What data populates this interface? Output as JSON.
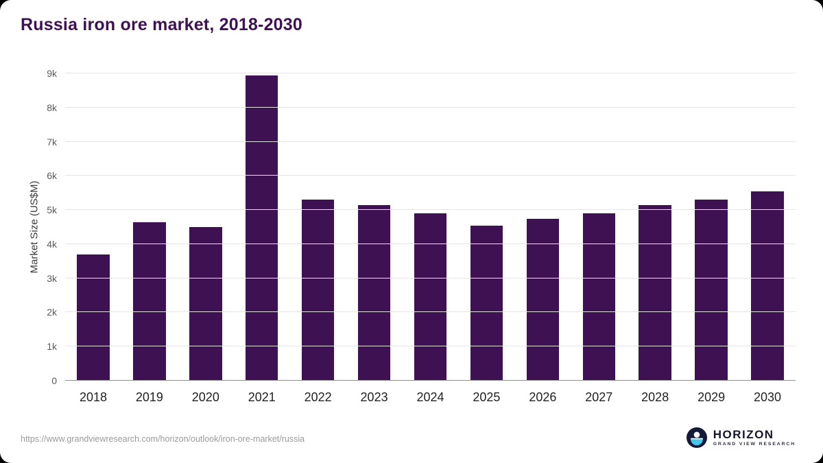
{
  "title": "Russia iron ore market, 2018-2030",
  "footer": {
    "source_url": "https://www.grandviewresearch.com/horizon/outlook/iron-ore-market/russia",
    "logo_title": "HORIZON",
    "logo_subtitle": "GRAND VIEW RESEARCH"
  },
  "colors": {
    "bar": "#3d1152",
    "title": "#3d1152",
    "grid": "#e4e4e4",
    "axis_line": "#8f8f8f",
    "ytick_text": "#5a5a5a",
    "xtick_text": "#222222",
    "source_text": "#9a9a9a",
    "logo_navy": "#141a38",
    "logo_blue": "#45c5ea"
  },
  "chart_data": {
    "type": "bar",
    "title": "Russia iron ore market, 2018-2030",
    "categories": [
      "2018",
      "2019",
      "2020",
      "2021",
      "2022",
      "2023",
      "2024",
      "2025",
      "2026",
      "2027",
      "2028",
      "2029",
      "2030"
    ],
    "values": [
      3700,
      4650,
      4500,
      8950,
      5300,
      5150,
      4900,
      4550,
      4750,
      4900,
      5150,
      5300,
      5550
    ],
    "xlabel": "",
    "ylabel": "Market Size (US$M)",
    "ylim": [
      0,
      9000
    ],
    "yticks": [
      0,
      1000,
      2000,
      3000,
      4000,
      5000,
      6000,
      7000,
      8000,
      9000
    ],
    "ytick_labels": [
      "0",
      "1k",
      "2k",
      "3k",
      "4k",
      "5k",
      "6k",
      "7k",
      "8k",
      "9k"
    ],
    "grid": true,
    "legend": false
  }
}
